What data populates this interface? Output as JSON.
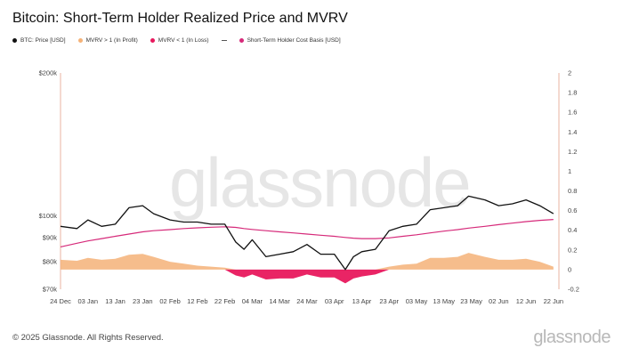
{
  "title": "Bitcoin: Short-Term Holder Realized Price and MVRV",
  "legend": [
    {
      "label": "BTC: Price [USD]",
      "color": "#111111",
      "marker": "dot"
    },
    {
      "label": "MVRV > 1 (In Profit)",
      "color": "#f5b278",
      "marker": "dot"
    },
    {
      "label": "MVRV < 1 (In Loss)",
      "color": "#e8185d",
      "marker": "dot"
    },
    {
      "label": "",
      "color": "#555555",
      "marker": "dash"
    },
    {
      "label": "Short-Term Holder Cost Basis [USD]",
      "color": "#d62a7a",
      "marker": "dot"
    }
  ],
  "watermark": "glassnode",
  "footer": {
    "copyright": "© 2025 Glassnode. All Rights Reserved.",
    "logo": "glassnode"
  },
  "colors": {
    "price": "#111111",
    "cost_basis": "#d62a7a",
    "profit_fill": "#f5b278",
    "loss_fill": "#e8185d",
    "axis_right": "#e9b3a0"
  },
  "chart_data": {
    "type": "line",
    "x": [
      "2024-12-24",
      "2024-12-30",
      "2025-01-03",
      "2025-01-08",
      "2025-01-13",
      "2025-01-18",
      "2025-01-23",
      "2025-01-27",
      "2025-02-02",
      "2025-02-07",
      "2025-02-12",
      "2025-02-17",
      "2025-02-22",
      "2025-02-26",
      "2025-03-01",
      "2025-03-04",
      "2025-03-09",
      "2025-03-14",
      "2025-03-19",
      "2025-03-24",
      "2025-03-29",
      "2025-04-03",
      "2025-04-07",
      "2025-04-10",
      "2025-04-13",
      "2025-04-18",
      "2025-04-23",
      "2025-04-28",
      "2025-05-03",
      "2025-05-08",
      "2025-05-13",
      "2025-05-18",
      "2025-05-22",
      "2025-05-28",
      "2025-06-02",
      "2025-06-07",
      "2025-06-12",
      "2025-06-17",
      "2025-06-22"
    ],
    "x_ticks": [
      "24 Dec",
      "03 Jan",
      "13 Jan",
      "23 Jan",
      "02 Feb",
      "12 Feb",
      "22 Feb",
      "04 Mar",
      "14 Mar",
      "24 Mar",
      "03 Apr",
      "13 Apr",
      "23 Apr",
      "03 May",
      "13 May",
      "23 May",
      "02 Jun",
      "12 Jun",
      "22 Jun"
    ],
    "series": [
      {
        "name": "BTC: Price [USD]",
        "axis": "left",
        "values": [
          95000,
          94000,
          98000,
          95000,
          96000,
          104000,
          105000,
          101000,
          98000,
          97000,
          97000,
          96000,
          96000,
          88000,
          85000,
          89000,
          82000,
          83000,
          84000,
          87000,
          83000,
          83000,
          77000,
          82000,
          84000,
          85000,
          93000,
          95000,
          96000,
          103000,
          104000,
          105000,
          110000,
          108000,
          105000,
          106000,
          108000,
          105000,
          101000
        ]
      },
      {
        "name": "Short-Term Holder Cost Basis [USD]",
        "axis": "left",
        "values": [
          86000,
          87500,
          88500,
          89500,
          90500,
          91500,
          92500,
          93000,
          93500,
          94000,
          94300,
          94600,
          94800,
          94500,
          94000,
          93600,
          93000,
          92500,
          92000,
          91500,
          91000,
          90500,
          90000,
          89700,
          89500,
          89500,
          89800,
          90500,
          91200,
          92000,
          92800,
          93500,
          94200,
          95000,
          95800,
          96500,
          97200,
          97800,
          98200
        ]
      },
      {
        "name": "MVRV",
        "axis": "right",
        "values": [
          0.1,
          0.09,
          0.12,
          0.1,
          0.11,
          0.15,
          0.16,
          0.13,
          0.08,
          0.06,
          0.04,
          0.03,
          0.02,
          -0.06,
          -0.08,
          -0.05,
          -0.1,
          -0.09,
          -0.09,
          -0.05,
          -0.08,
          -0.08,
          -0.14,
          -0.09,
          -0.07,
          -0.05,
          0.03,
          0.05,
          0.06,
          0.12,
          0.12,
          0.13,
          0.17,
          0.13,
          0.1,
          0.1,
          0.11,
          0.08,
          0.03
        ]
      }
    ],
    "y_left": {
      "ticks": [
        "$70k",
        "$80k",
        "$90k",
        "$100k",
        "$200k"
      ],
      "scale": "log",
      "range": [
        70000,
        200000
      ]
    },
    "y_right": {
      "ticks": [
        "-0.2",
        "0",
        "0.2",
        "0.4",
        "0.6",
        "0.8",
        "1",
        "1.2",
        "1.4",
        "1.6",
        "1.8",
        "2"
      ],
      "range": [
        -0.2,
        2
      ]
    },
    "grid": false
  }
}
